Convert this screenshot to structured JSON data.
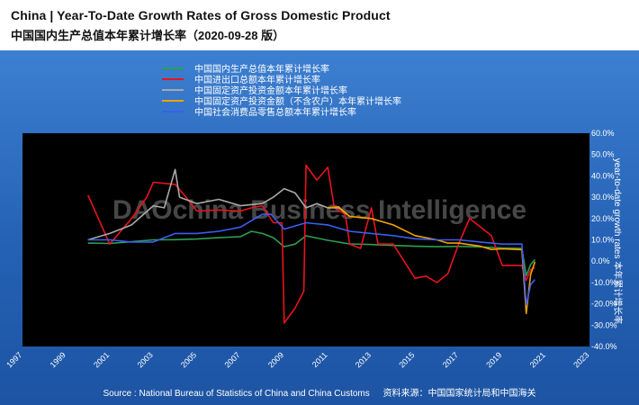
{
  "header": {
    "title_en": "China  |  Year-To-Date Growth Rates of Gross Domestic Product",
    "title_zh": "中国国内生产总值本年累计增长率（2020-09-28 版）"
  },
  "watermark": "DAOchina Business Intelligence",
  "source": {
    "en": "Source : National Bureau of Statistics of China and China Customs",
    "zh": "资料来源：中国国家统计局和中国海关"
  },
  "chart_data": {
    "type": "line",
    "title": "China  |  Year-To-Date Growth Rates of Gross Domestic Product",
    "xlabel": "",
    "ylabel": "year-to-date growth rates 本年累计增长率",
    "y_axis_position": "right",
    "xlim": [
      1997,
      2023
    ],
    "ylim": [
      -40,
      60
    ],
    "x_ticks": [
      "1997",
      "1999",
      "2001",
      "2003",
      "2005",
      "2007",
      "2009",
      "2011",
      "2013",
      "2015",
      "2017",
      "2019",
      "2021",
      "2023"
    ],
    "y_ticks": [
      "60.0%",
      "50.0%",
      "40.0%",
      "30.0%",
      "20.0%",
      "10.0%",
      "0.0%",
      "-10.0%",
      "-20.0%",
      "-30.0%",
      "-40.0%"
    ],
    "legend_position": "top-left",
    "grid": false,
    "series": [
      {
        "name": "中国国内生产总值本年累计增长率",
        "color": "#2e9e52",
        "points": [
          [
            2000.0,
            8.5
          ],
          [
            2001.0,
            8.3
          ],
          [
            2002.0,
            9.1
          ],
          [
            2003.0,
            10.0
          ],
          [
            2004.0,
            10.1
          ],
          [
            2005.0,
            10.4
          ],
          [
            2006.0,
            11.0
          ],
          [
            2007.0,
            11.5
          ],
          [
            2007.5,
            14.0
          ],
          [
            2008.0,
            13.0
          ],
          [
            2008.5,
            11.0
          ],
          [
            2009.0,
            6.8
          ],
          [
            2009.5,
            8.0
          ],
          [
            2010.0,
            11.9
          ],
          [
            2011.0,
            9.8
          ],
          [
            2012.0,
            8.1
          ],
          [
            2013.0,
            7.8
          ],
          [
            2014.0,
            7.4
          ],
          [
            2015.0,
            7.0
          ],
          [
            2016.0,
            6.8
          ],
          [
            2017.0,
            6.9
          ],
          [
            2018.0,
            6.7
          ],
          [
            2019.0,
            6.2
          ],
          [
            2019.9,
            6.0
          ],
          [
            2020.1,
            -6.8
          ],
          [
            2020.3,
            -1.6
          ],
          [
            2020.5,
            0.7
          ]
        ]
      },
      {
        "name": "中国进出口总额本年累计增长率",
        "color": "#e8141b",
        "points": [
          [
            2000.0,
            31.0
          ],
          [
            2001.0,
            8.0
          ],
          [
            2002.0,
            20.0
          ],
          [
            2002.7,
            30.0
          ],
          [
            2003.0,
            37.0
          ],
          [
            2004.0,
            36.0
          ],
          [
            2004.5,
            30.0
          ],
          [
            2005.0,
            23.5
          ],
          [
            2006.0,
            24.0
          ],
          [
            2007.0,
            23.5
          ],
          [
            2007.5,
            25.0
          ],
          [
            2008.0,
            26.0
          ],
          [
            2008.5,
            18.0
          ],
          [
            2008.9,
            18.0
          ],
          [
            2009.0,
            -29.0
          ],
          [
            2009.5,
            -22.0
          ],
          [
            2009.9,
            -14.0
          ],
          [
            2010.0,
            45.0
          ],
          [
            2010.5,
            38.0
          ],
          [
            2011.0,
            44.0
          ],
          [
            2011.3,
            25.0
          ],
          [
            2011.8,
            22.0
          ],
          [
            2012.0,
            8.0
          ],
          [
            2012.5,
            6.0
          ],
          [
            2013.0,
            25.0
          ],
          [
            2013.3,
            8.0
          ],
          [
            2014.0,
            8.0
          ],
          [
            2014.5,
            0.0
          ],
          [
            2015.0,
            -8.0
          ],
          [
            2015.5,
            -7.0
          ],
          [
            2016.0,
            -10.0
          ],
          [
            2016.5,
            -6.0
          ],
          [
            2017.0,
            8.0
          ],
          [
            2017.5,
            20.0
          ],
          [
            2018.0,
            16.0
          ],
          [
            2018.5,
            12.0
          ],
          [
            2019.0,
            -2.0
          ],
          [
            2019.9,
            -2.0
          ],
          [
            2020.1,
            -9.0
          ],
          [
            2020.3,
            -4.0
          ],
          [
            2020.5,
            -3.0
          ]
        ]
      },
      {
        "name": "中国固定资产投资金额本年累计增长率",
        "color": "#a9a9a9",
        "points": [
          [
            2000.0,
            10.0
          ],
          [
            2001.0,
            13.0
          ],
          [
            2002.0,
            17.0
          ],
          [
            2003.0,
            26.0
          ],
          [
            2003.5,
            25.0
          ],
          [
            2004.0,
            43.0
          ],
          [
            2004.2,
            30.0
          ],
          [
            2005.0,
            27.0
          ],
          [
            2006.0,
            29.0
          ],
          [
            2007.0,
            26.0
          ],
          [
            2008.0,
            27.0
          ],
          [
            2008.5,
            30.0
          ],
          [
            2009.0,
            34.0
          ],
          [
            2009.5,
            32.0
          ],
          [
            2010.0,
            25.0
          ],
          [
            2010.5,
            27.0
          ],
          [
            2011.0,
            25.0
          ],
          [
            2011.5,
            25.0
          ],
          [
            2012.0,
            21.0
          ]
        ]
      },
      {
        "name": "中国固定资产投资金额（不含农户）本年累计增长率",
        "color": "#f2a200",
        "points": [
          [
            2011.0,
            25.0
          ],
          [
            2011.5,
            25.5
          ],
          [
            2012.0,
            21.0
          ],
          [
            2013.0,
            20.0
          ],
          [
            2014.0,
            17.0
          ],
          [
            2015.0,
            12.0
          ],
          [
            2016.0,
            10.0
          ],
          [
            2016.5,
            8.5
          ],
          [
            2017.0,
            8.5
          ],
          [
            2018.0,
            7.0
          ],
          [
            2018.5,
            5.5
          ],
          [
            2019.0,
            5.8
          ],
          [
            2019.9,
            5.4
          ],
          [
            2020.1,
            -24.5
          ],
          [
            2020.3,
            -6.3
          ],
          [
            2020.5,
            -0.3
          ]
        ]
      },
      {
        "name": "中国社会消费品零售总额本年累计增长率",
        "color": "#3a5ef0",
        "points": [
          [
            2000.0,
            10.0
          ],
          [
            2001.0,
            10.0
          ],
          [
            2002.0,
            9.0
          ],
          [
            2003.0,
            9.0
          ],
          [
            2004.0,
            13.0
          ],
          [
            2005.0,
            13.0
          ],
          [
            2006.0,
            14.0
          ],
          [
            2007.0,
            16.0
          ],
          [
            2008.0,
            22.0
          ],
          [
            2008.4,
            22.0
          ],
          [
            2009.0,
            15.0
          ],
          [
            2010.0,
            18.0
          ],
          [
            2011.0,
            17.0
          ],
          [
            2012.0,
            14.0
          ],
          [
            2013.0,
            13.0
          ],
          [
            2014.0,
            12.0
          ],
          [
            2015.0,
            10.5
          ],
          [
            2016.0,
            10.0
          ],
          [
            2017.0,
            10.0
          ],
          [
            2018.0,
            9.0
          ],
          [
            2019.0,
            8.0
          ],
          [
            2019.9,
            8.0
          ],
          [
            2020.1,
            -20.5
          ],
          [
            2020.3,
            -11.0
          ],
          [
            2020.5,
            -8.6
          ]
        ]
      }
    ]
  }
}
